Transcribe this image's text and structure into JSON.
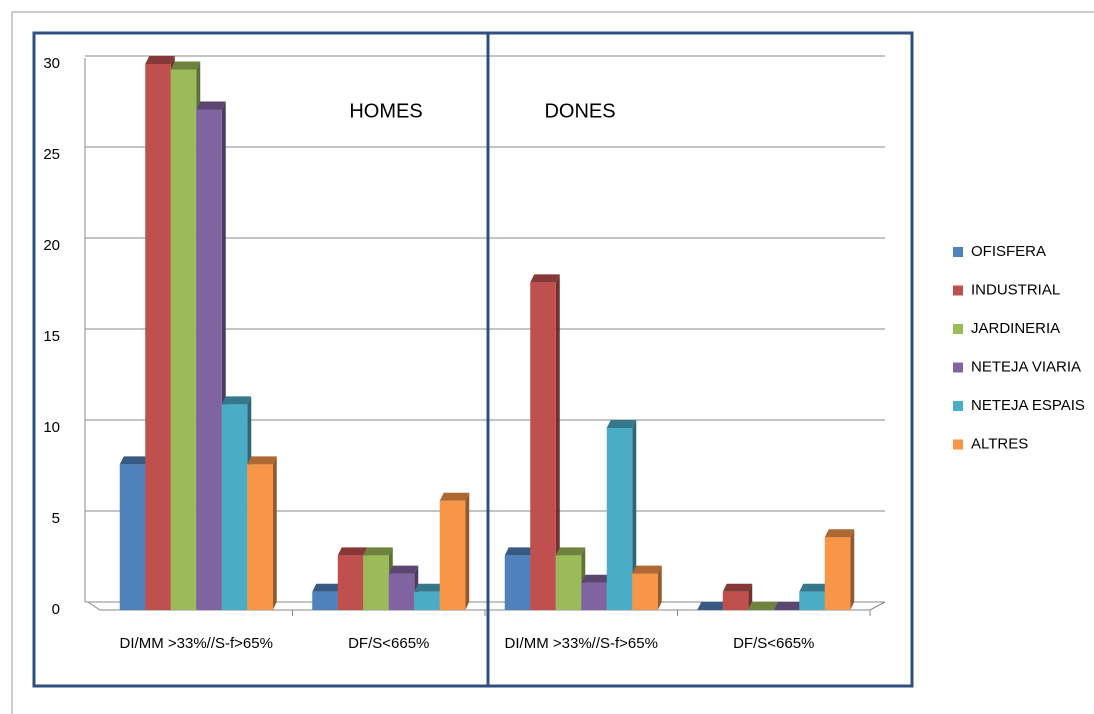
{
  "chart_data": {
    "type": "bar3d",
    "categories": [
      "DI/MM >33%//S-f>65%",
      "DF/S<665%",
      "DI/MM >33%//S-f>65%",
      "DF/S<665%"
    ],
    "annotations": [
      "HOMES",
      "DONES"
    ],
    "series": [
      {
        "name": "OFISFERA",
        "color": "#4f81bd",
        "values": [
          8,
          1,
          3,
          0
        ]
      },
      {
        "name": "INDUSTRIAL",
        "color": "#c0504d",
        "values": [
          30,
          3,
          18,
          1
        ]
      },
      {
        "name": "JARDINERIA",
        "color": "#9bbb59",
        "values": [
          29.7,
          3,
          3,
          0
        ]
      },
      {
        "name": "NETEJA VIARIA",
        "color": "#8064a2",
        "values": [
          27.5,
          2,
          1.5,
          0
        ]
      },
      {
        "name": "NETEJA ESPAIS",
        "color": "#4bacc6",
        "values": [
          11.3,
          1,
          10,
          1
        ]
      },
      {
        "name": "ALTRES",
        "color": "#f79646",
        "values": [
          8,
          6,
          2,
          4
        ]
      }
    ],
    "ylim": [
      0,
      30
    ],
    "yticks": [
      0,
      5,
      10,
      15,
      20,
      25,
      30
    ],
    "grid": true,
    "legend": "right"
  }
}
